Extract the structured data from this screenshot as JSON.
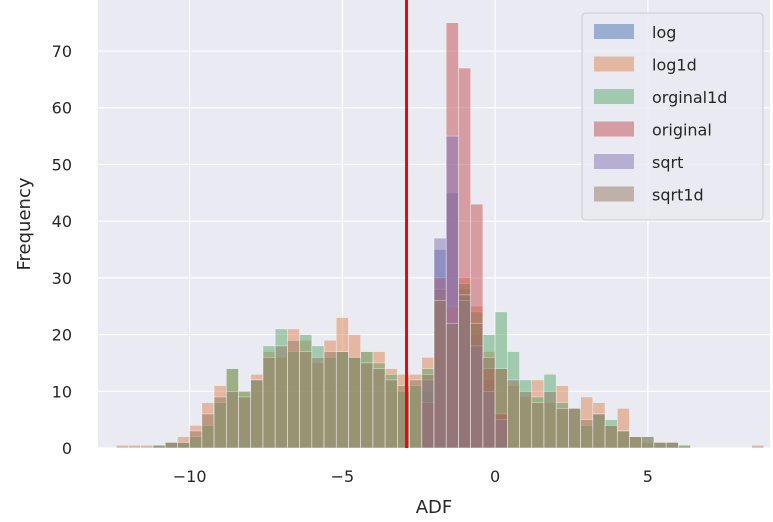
{
  "chart_data": {
    "type": "histogram",
    "title": "",
    "xlabel": "ADF",
    "ylabel": "Frequency",
    "xlim": [
      -13,
      9
    ],
    "ylim": [
      0,
      79
    ],
    "xticks": [
      -10,
      -5,
      0,
      5
    ],
    "xtick_labels": [
      "−10",
      "−5",
      "0",
      "5"
    ],
    "yticks": [
      0,
      10,
      20,
      30,
      40,
      50,
      60,
      70
    ],
    "grid": true,
    "legend_position": "upper-right",
    "vline": {
      "x": -2.9,
      "color": "#ff0000"
    },
    "bar_opacity": 0.5,
    "series": [
      {
        "name": "log",
        "color": "#4c72b0",
        "bin_width": 0.4,
        "bins": [
          [
            -2.4,
            10
          ],
          [
            -2.0,
            35
          ],
          [
            -1.6,
            45
          ],
          [
            -1.2,
            28
          ],
          [
            -0.8,
            20
          ],
          [
            -0.4,
            12
          ],
          [
            0.0,
            6
          ]
        ]
      },
      {
        "name": "log1d",
        "color": "#dd8452",
        "bin_width": 0.4,
        "bins": [
          [
            -12.4,
            0.5
          ],
          [
            -12.0,
            0.5
          ],
          [
            -11.6,
            0.5
          ],
          [
            -10.8,
            1
          ],
          [
            -10.4,
            2
          ],
          [
            -10.0,
            4
          ],
          [
            -9.6,
            8
          ],
          [
            -9.2,
            11
          ],
          [
            -8.8,
            14
          ],
          [
            -8.4,
            10
          ],
          [
            -8.0,
            13
          ],
          [
            -7.6,
            17
          ],
          [
            -7.2,
            16
          ],
          [
            -6.8,
            21
          ],
          [
            -6.4,
            19
          ],
          [
            -6.0,
            15
          ],
          [
            -5.6,
            19
          ],
          [
            -5.2,
            23
          ],
          [
            -4.8,
            20
          ],
          [
            -4.4,
            17
          ],
          [
            -4.0,
            17
          ],
          [
            -3.6,
            14
          ],
          [
            -3.2,
            13
          ],
          [
            -2.8,
            13
          ],
          [
            -2.4,
            16
          ],
          [
            -2.0,
            28
          ],
          [
            -1.6,
            25
          ],
          [
            -1.2,
            30
          ],
          [
            -0.8,
            25
          ],
          [
            -0.4,
            17
          ],
          [
            0.0,
            14
          ],
          [
            0.4,
            11
          ],
          [
            0.8,
            9
          ],
          [
            1.2,
            12
          ],
          [
            1.6,
            8
          ],
          [
            2.0,
            11
          ],
          [
            2.4,
            7
          ],
          [
            2.8,
            9
          ],
          [
            3.2,
            8
          ],
          [
            3.6,
            4
          ],
          [
            4.0,
            7
          ],
          [
            4.4,
            2
          ],
          [
            4.8,
            1
          ],
          [
            5.2,
            1
          ],
          [
            5.6,
            1
          ],
          [
            6.0,
            0.5
          ],
          [
            8.4,
            0.5
          ]
        ]
      },
      {
        "name": "orginal1d",
        "color": "#55a868",
        "bin_width": 0.4,
        "bins": [
          [
            -11.2,
            0.5
          ],
          [
            -10.8,
            1
          ],
          [
            -10.4,
            1
          ],
          [
            -10.0,
            2
          ],
          [
            -9.6,
            4
          ],
          [
            -9.2,
            8
          ],
          [
            -8.8,
            14
          ],
          [
            -8.4,
            10
          ],
          [
            -8.0,
            12
          ],
          [
            -7.6,
            18
          ],
          [
            -7.2,
            21
          ],
          [
            -6.8,
            17
          ],
          [
            -6.4,
            20
          ],
          [
            -6.0,
            18
          ],
          [
            -5.6,
            16
          ],
          [
            -5.2,
            17
          ],
          [
            -4.8,
            16
          ],
          [
            -4.4,
            17
          ],
          [
            -4.0,
            15
          ],
          [
            -3.6,
            13
          ],
          [
            -3.2,
            10
          ],
          [
            -2.8,
            11
          ],
          [
            -2.4,
            14
          ],
          [
            -2.0,
            28
          ],
          [
            -1.6,
            22
          ],
          [
            -1.2,
            29
          ],
          [
            -0.8,
            24
          ],
          [
            -0.4,
            20
          ],
          [
            0.0,
            24
          ],
          [
            0.4,
            17
          ],
          [
            0.8,
            12
          ],
          [
            1.2,
            9
          ],
          [
            1.6,
            13
          ],
          [
            2.0,
            8
          ],
          [
            2.4,
            7
          ],
          [
            2.8,
            4
          ],
          [
            3.2,
            6
          ],
          [
            3.6,
            5
          ],
          [
            4.0,
            3
          ],
          [
            4.4,
            2
          ],
          [
            4.8,
            2
          ],
          [
            5.2,
            1
          ],
          [
            5.6,
            1
          ],
          [
            6.0,
            0.5
          ]
        ]
      },
      {
        "name": "original",
        "color": "#c44e52",
        "bin_width": 0.4,
        "bins": [
          [
            -2.4,
            8
          ],
          [
            -2.0,
            30
          ],
          [
            -1.6,
            75
          ],
          [
            -1.2,
            67
          ],
          [
            -0.8,
            43
          ],
          [
            -0.4,
            14
          ],
          [
            0.0,
            6
          ]
        ]
      },
      {
        "name": "sqrt",
        "color": "#8172b3",
        "bin_width": 0.4,
        "bins": [
          [
            -2.4,
            12
          ],
          [
            -2.0,
            37
          ],
          [
            -1.6,
            55
          ],
          [
            -1.2,
            26
          ],
          [
            -0.8,
            18
          ],
          [
            -0.4,
            10
          ],
          [
            0.0,
            5
          ]
        ]
      },
      {
        "name": "sqrt1d",
        "color": "#937860",
        "bin_width": 0.4,
        "bins": [
          [
            -11.2,
            0.5
          ],
          [
            -10.8,
            1
          ],
          [
            -10.4,
            1
          ],
          [
            -10.0,
            3
          ],
          [
            -9.6,
            6
          ],
          [
            -9.2,
            9
          ],
          [
            -8.8,
            10
          ],
          [
            -8.4,
            9
          ],
          [
            -8.0,
            12
          ],
          [
            -7.6,
            16
          ],
          [
            -7.2,
            18
          ],
          [
            -6.8,
            19
          ],
          [
            -6.4,
            17
          ],
          [
            -6.0,
            16
          ],
          [
            -5.6,
            17
          ],
          [
            -5.2,
            17
          ],
          [
            -4.8,
            16
          ],
          [
            -4.4,
            15
          ],
          [
            -4.0,
            14
          ],
          [
            -3.6,
            12
          ],
          [
            -3.2,
            11
          ],
          [
            -2.8,
            12
          ],
          [
            -2.4,
            13
          ],
          [
            -2.0,
            26
          ],
          [
            -1.6,
            22
          ],
          [
            -1.2,
            27
          ],
          [
            -0.8,
            22
          ],
          [
            -0.4,
            16
          ],
          [
            0.0,
            14
          ],
          [
            0.4,
            12
          ],
          [
            0.8,
            10
          ],
          [
            1.2,
            8
          ],
          [
            1.6,
            10
          ],
          [
            2.0,
            7
          ],
          [
            2.4,
            7
          ],
          [
            2.8,
            5
          ],
          [
            3.2,
            6
          ],
          [
            3.6,
            4
          ],
          [
            4.0,
            3
          ],
          [
            4.4,
            2
          ],
          [
            4.8,
            2
          ],
          [
            5.2,
            1
          ],
          [
            5.6,
            1
          ]
        ]
      }
    ]
  }
}
